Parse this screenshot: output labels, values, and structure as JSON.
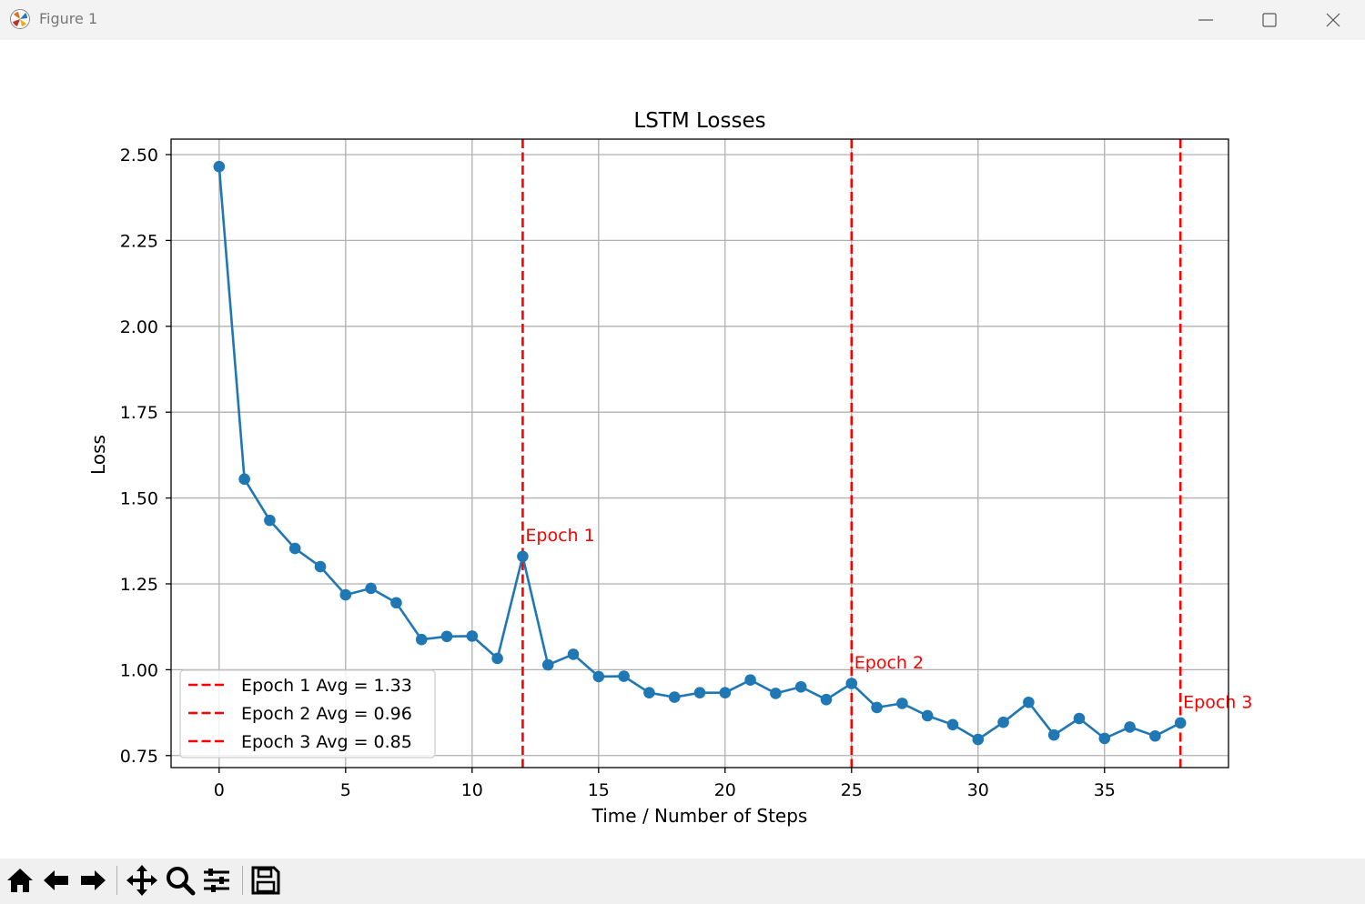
{
  "window": {
    "title": "Figure 1"
  },
  "toolbar": {
    "buttons": [
      "home-icon",
      "back-icon",
      "forward-icon",
      "pan-icon",
      "zoom-icon",
      "configure-subplots-icon",
      "save-icon"
    ]
  },
  "colors": {
    "line": "#1f77b4",
    "epoch_marker": "#ff0000",
    "grid": "#b0b0b0"
  },
  "chart_data": {
    "type": "line",
    "title": "LSTM Losses",
    "xlabel": "Time / Number of Steps",
    "ylabel": "Loss",
    "xlim": [
      -1.9,
      39.9
    ],
    "ylim": [
      0.715,
      2.545
    ],
    "xticks": [
      0,
      5,
      10,
      15,
      20,
      25,
      30,
      35
    ],
    "yticks": [
      0.75,
      1.0,
      1.25,
      1.5,
      1.75,
      2.0,
      2.25,
      2.5
    ],
    "ytick_labels": [
      "0.75",
      "1.00",
      "1.25",
      "1.50",
      "1.75",
      "2.00",
      "2.25",
      "2.50"
    ],
    "grid": true,
    "legend_position": "lower-left",
    "series": [
      {
        "x": [
          0,
          1,
          2,
          3,
          4,
          5,
          6,
          7,
          8,
          9,
          10,
          11,
          12,
          13,
          14,
          15,
          16,
          17,
          18,
          19,
          20,
          21,
          22,
          23,
          24,
          25,
          26,
          27,
          28,
          29,
          30,
          31,
          32,
          33,
          34,
          35,
          36,
          37,
          38
        ],
        "values": [
          2.465,
          1.555,
          1.435,
          1.353,
          1.3,
          1.218,
          1.237,
          1.195,
          1.088,
          1.097,
          1.098,
          1.033,
          1.33,
          1.014,
          1.045,
          0.98,
          0.981,
          0.933,
          0.92,
          0.933,
          0.933,
          0.97,
          0.931,
          0.95,
          0.913,
          0.96,
          0.89,
          0.902,
          0.866,
          0.84,
          0.797,
          0.847,
          0.905,
          0.81,
          0.858,
          0.8,
          0.833,
          0.807,
          0.845
        ]
      }
    ],
    "epoch_lines": [
      {
        "x": 12,
        "label": "Epoch 1",
        "label_y": 1.39,
        "legend": "Epoch 1 Avg = 1.33"
      },
      {
        "x": 25,
        "label": "Epoch 2",
        "label_y": 1.02,
        "legend": "Epoch 2 Avg = 0.96"
      },
      {
        "x": 38,
        "label": "Epoch 3",
        "label_y": 0.905,
        "legend": "Epoch 3 Avg = 0.85"
      }
    ]
  }
}
